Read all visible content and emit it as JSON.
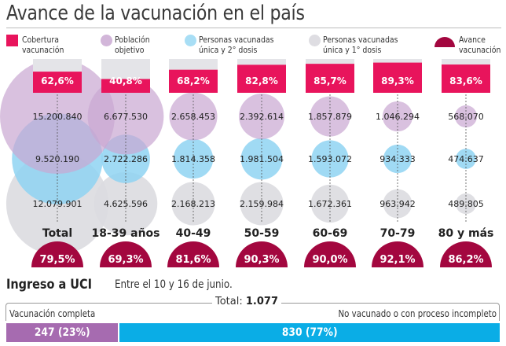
{
  "title": "Avance de la vacunación en el país",
  "legend": [
    {
      "key": "cobertura",
      "label_1": "Cobertura",
      "label_2": "vacunación",
      "color": "#e8145c",
      "shape": "square"
    },
    {
      "key": "poblacion",
      "label_1": "Población",
      "label_2": "objetivo",
      "color": "#d2b6d9",
      "shape": "circle"
    },
    {
      "key": "segunda",
      "label_1": "Personas vacunadas",
      "label_2": "única y 2° dosis",
      "color": "#a8def5",
      "shape": "circle"
    },
    {
      "key": "primera",
      "label_1": "Personas vacunadas",
      "label_2": "única y 1° dosis",
      "color": "#dedde2",
      "shape": "circle"
    },
    {
      "key": "avance",
      "label_1": "Avance",
      "label_2": "vacunación",
      "color": "#a3073f",
      "shape": "half-circle"
    }
  ],
  "colors": {
    "cobertura": "#e8145c",
    "cobertura_bg": "#e4e4e8",
    "poblacion": "#c9a6d2",
    "segunda": "#8fd4f2",
    "primera": "#dcdbe0",
    "avance": "#a3073f",
    "uci_vacunados": "#a66bb0",
    "uci_no_vacunados": "#0aade6"
  },
  "chart_data": {
    "type": "bubble-table",
    "title": "Avance de la vacunación en el país",
    "categories": [
      "Total",
      "18-39 años",
      "40-49",
      "50-59",
      "60-69",
      "70-79",
      "80 y más"
    ],
    "series": [
      {
        "name": "Cobertura vacunación",
        "values": [
          62.6,
          40.8,
          68.2,
          82.8,
          85.7,
          89.3,
          83.6
        ],
        "labels": [
          "62,6%",
          "40,8%",
          "68,2%",
          "82,8%",
          "85,7%",
          "89,3%",
          "83,6%"
        ]
      },
      {
        "name": "Población objetivo",
        "values": [
          15200840,
          6677530,
          2658453,
          2392614,
          1857879,
          1046294,
          568070
        ],
        "labels": [
          "15.200.840",
          "6.677.530",
          "2.658.453",
          "2.392.614",
          "1.857.879",
          "1.046.294",
          "568.070"
        ]
      },
      {
        "name": "Personas vacunadas única y 2° dosis",
        "values": [
          9520190,
          2722286,
          1814358,
          1981504,
          1593072,
          934333,
          474637
        ],
        "labels": [
          "9.520.190",
          "2.722.286",
          "1.814.358",
          "1.981.504",
          "1.593.072",
          "934.333",
          "474.637"
        ]
      },
      {
        "name": "Personas vacunadas única y 1° dosis",
        "values": [
          12079901,
          4625596,
          2168213,
          2159984,
          1672361,
          963942,
          489805
        ],
        "labels": [
          "12.079.901",
          "4.625.596",
          "2.168.213",
          "2.159.984",
          "1.672.361",
          "963.942",
          "489.805"
        ]
      },
      {
        "name": "Avance vacunación",
        "values": [
          79.5,
          69.3,
          81.6,
          90.3,
          90.0,
          92.1,
          86.2
        ],
        "labels": [
          "79,5%",
          "69,3%",
          "81,6%",
          "90,3%",
          "90,0%",
          "92,1%",
          "86,2%"
        ]
      }
    ]
  },
  "uci": {
    "title": "Ingreso a UCI",
    "subtitle": "Entre el 10 y 16 de junio.",
    "total_label": "Total:",
    "total_value": "1.077",
    "left_label": "Vacunación completa",
    "right_label": "No vacunado o con proceso incompleto",
    "segments": [
      {
        "name": "Vacunación completa",
        "value": 247,
        "percent": 23,
        "label": "247 (23%)"
      },
      {
        "name": "No vacunado o con proceso incompleto",
        "value": 830,
        "percent": 77,
        "label": "830 (77%)"
      }
    ]
  }
}
